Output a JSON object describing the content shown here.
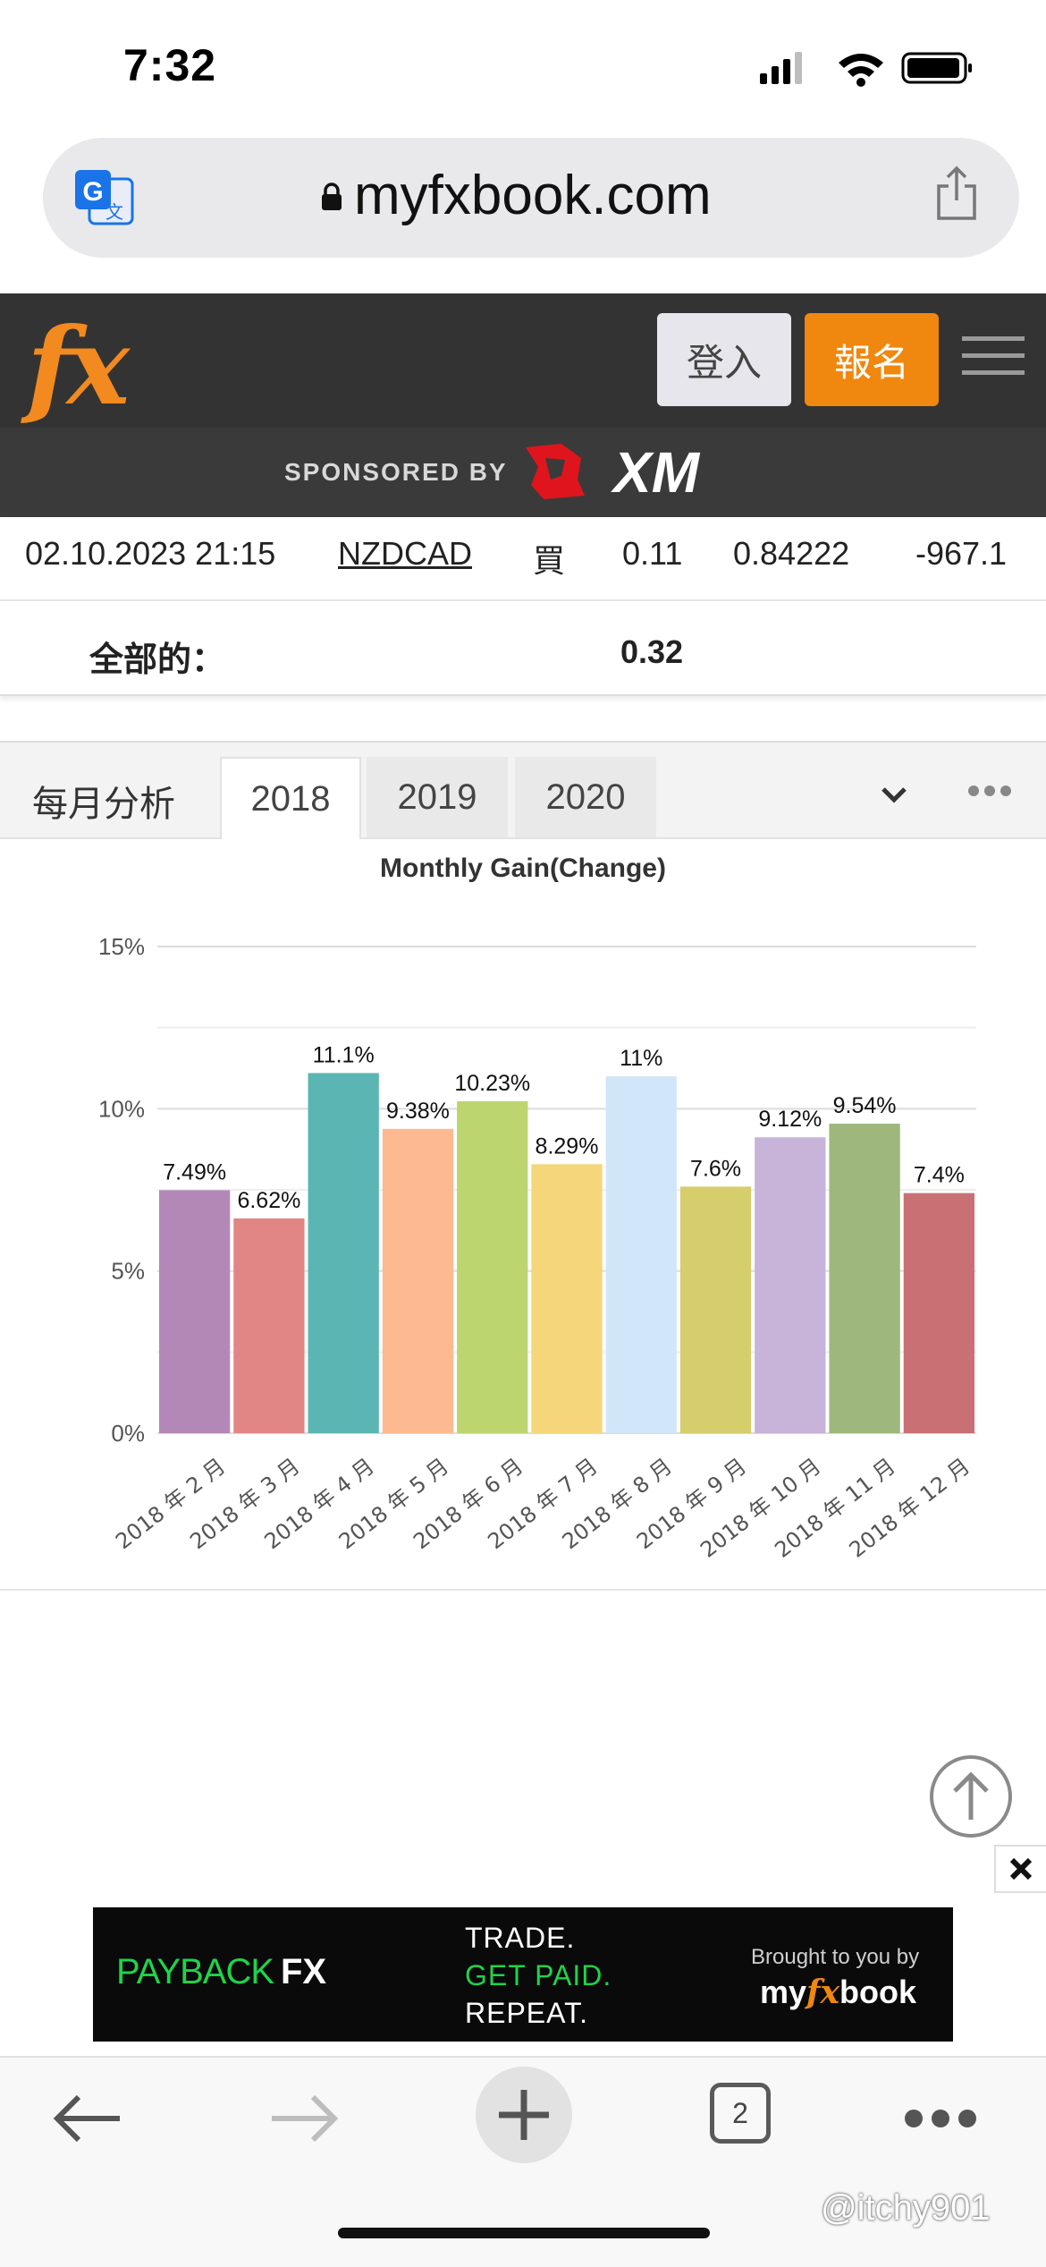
{
  "status": {
    "time": "7:32"
  },
  "browser": {
    "url": "myfxbook.com",
    "tabs_count": "2"
  },
  "header": {
    "logo": "fx",
    "login_label": "登入",
    "signup_label": "報名",
    "sponsor_label": "SPONSORED BY",
    "sponsor_brand": "XM"
  },
  "trade_row": {
    "date": "02.10.2023 21:15",
    "symbol": "NZDCAD",
    "type": "買",
    "lots": "0.11",
    "price": "0.84222",
    "profit": "-967.1"
  },
  "total": {
    "label": "全部的：",
    "value": "0.32"
  },
  "monthly": {
    "section_title": "每月分析",
    "tabs": [
      {
        "label": "2018",
        "active": true
      },
      {
        "label": "2019",
        "active": false
      },
      {
        "label": "2020",
        "active": false
      }
    ]
  },
  "chart_data": {
    "type": "bar",
    "title": "Monthly Gain(Change)",
    "categories": [
      "2018 年 2 月",
      "2018 年 3 月",
      "2018 年 4 月",
      "2018 年 5 月",
      "2018 年 6 月",
      "2018 年 7 月",
      "2018 年 8 月",
      "2018 年 9 月",
      "2018 年 10 月",
      "2018 年 11 月",
      "2018 年 12 月"
    ],
    "values": [
      7.49,
      6.62,
      11.1,
      9.38,
      10.23,
      8.29,
      11,
      7.6,
      9.12,
      9.54,
      7.4
    ],
    "value_labels": [
      "7.49%",
      "6.62%",
      "11.1%",
      "9.38%",
      "10.23%",
      "8.29%",
      "11%",
      "7.6%",
      "9.12%",
      "9.54%",
      "7.4%"
    ],
    "colors": [
      "#b388b7",
      "#e28585",
      "#5ab5b3",
      "#fdb990",
      "#bdd56e",
      "#f5d67a",
      "#d2e6f9",
      "#d6cd6c",
      "#c7b4d8",
      "#9db77c",
      "#c87074"
    ],
    "ylim": [
      0,
      15
    ],
    "yticks": [
      "0%",
      "5%",
      "10%",
      "15%"
    ],
    "ytick_values": [
      0,
      5,
      10,
      15
    ],
    "grid": true,
    "legend": "none"
  },
  "ad": {
    "payback": "PAYBACK",
    "fx": "FX",
    "line1": "TRADE.",
    "line2": "GET PAID.",
    "line3": "REPEAT.",
    "brought_by": "Brought to you by",
    "myfx_pre": "my",
    "myfx_mid": "fx",
    "myfx_post": "book"
  },
  "watermark": "@itchy901"
}
